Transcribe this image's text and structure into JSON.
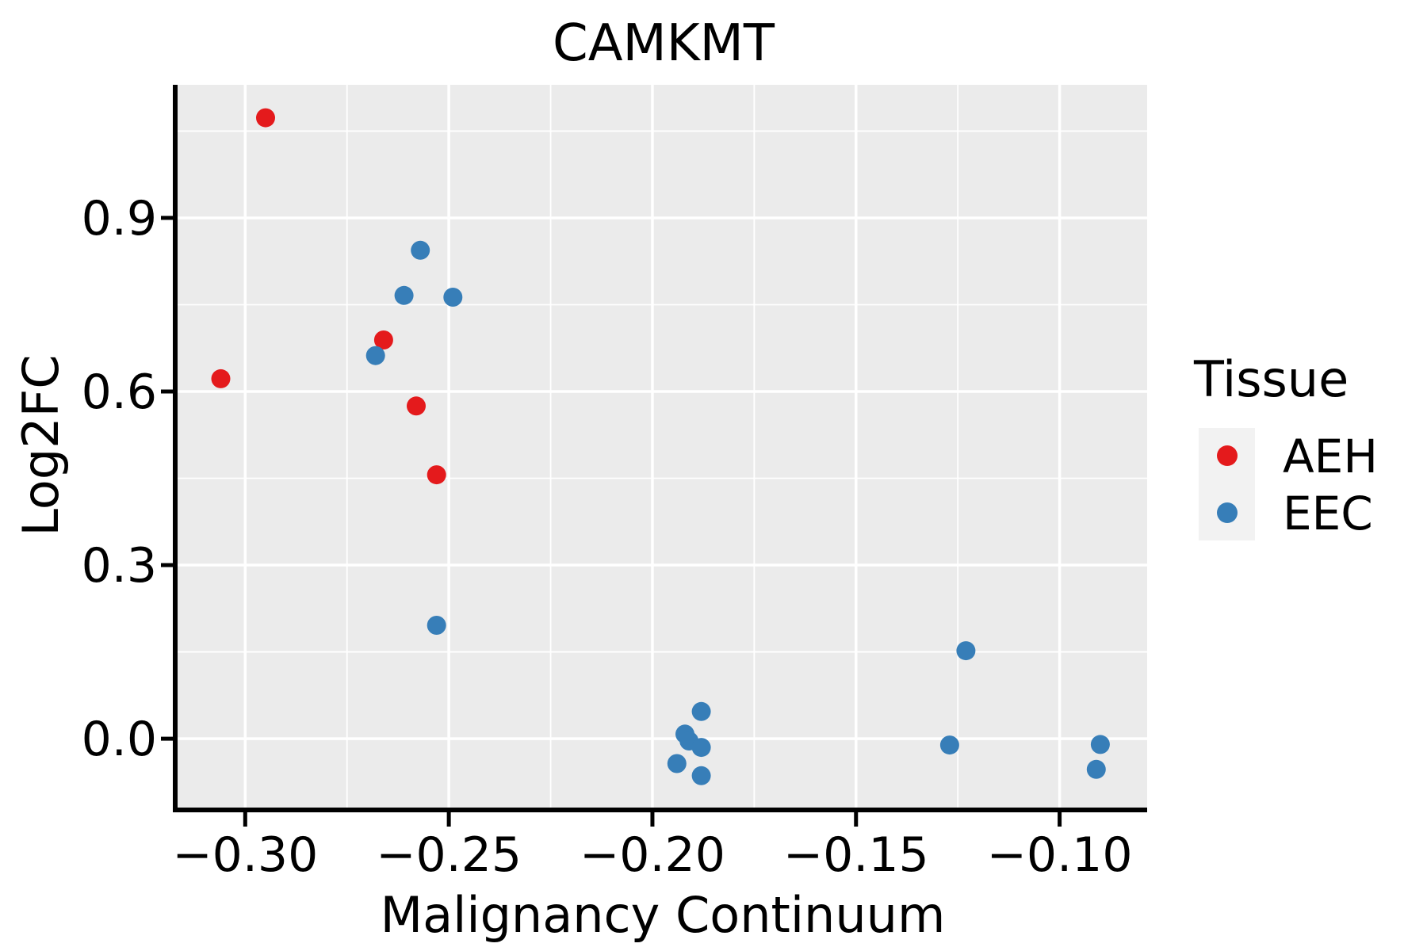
{
  "colors": {
    "aeh": "#E41A1C",
    "eec": "#377EB8",
    "panel_background": "#EBEBEB",
    "gridline": "#FFFFFF",
    "legend_key_background": "#F2F2F2",
    "axis_line": "#000000",
    "text": "#000000",
    "figure_background": "#FFFFFF"
  },
  "chart_data": {
    "type": "scatter",
    "title": "CAMKMT",
    "xlabel": "Malignancy Continuum",
    "ylabel": "Log2FC",
    "xlim": [
      -0.317,
      -0.0785
    ],
    "ylim": [
      -0.119,
      1.13
    ],
    "x_ticks": [
      -0.3,
      -0.25,
      -0.2,
      -0.15,
      -0.1
    ],
    "x_tick_labels": [
      "−0.30",
      "−0.25",
      "−0.20",
      "−0.15",
      "−0.10"
    ],
    "x_minor_ticks": [
      -0.275,
      -0.225,
      -0.175,
      -0.125
    ],
    "y_ticks": [
      0.0,
      0.3,
      0.6,
      0.9
    ],
    "y_tick_labels": [
      "0.0",
      "0.3",
      "0.6",
      "0.9"
    ],
    "y_minor_ticks": [
      0.15,
      0.45,
      0.75,
      1.05
    ],
    "grid": true,
    "legend": {
      "title": "Tissue",
      "position": "right",
      "entries": [
        {
          "label": "AEH",
          "color": "#E41A1C"
        },
        {
          "label": "EEC",
          "color": "#377EB8"
        }
      ]
    },
    "marker_radius_px": 12,
    "series": [
      {
        "name": "AEH",
        "color": "#E41A1C",
        "points": [
          [
            -0.295,
            1.073
          ],
          [
            -0.306,
            0.622
          ],
          [
            -0.266,
            0.689
          ],
          [
            -0.258,
            0.575
          ],
          [
            -0.253,
            0.456
          ]
        ]
      },
      {
        "name": "EEC",
        "color": "#377EB8",
        "points": [
          [
            -0.257,
            0.844
          ],
          [
            -0.261,
            0.766
          ],
          [
            -0.249,
            0.763
          ],
          [
            -0.268,
            0.662
          ],
          [
            -0.253,
            0.196
          ],
          [
            -0.188,
            0.047
          ],
          [
            -0.192,
            0.008
          ],
          [
            -0.191,
            -0.004
          ],
          [
            -0.188,
            -0.015
          ],
          [
            -0.194,
            -0.043
          ],
          [
            -0.188,
            -0.064
          ],
          [
            -0.123,
            0.152
          ],
          [
            -0.127,
            -0.011
          ],
          [
            -0.09,
            -0.01
          ],
          [
            -0.091,
            -0.053
          ]
        ]
      }
    ]
  }
}
